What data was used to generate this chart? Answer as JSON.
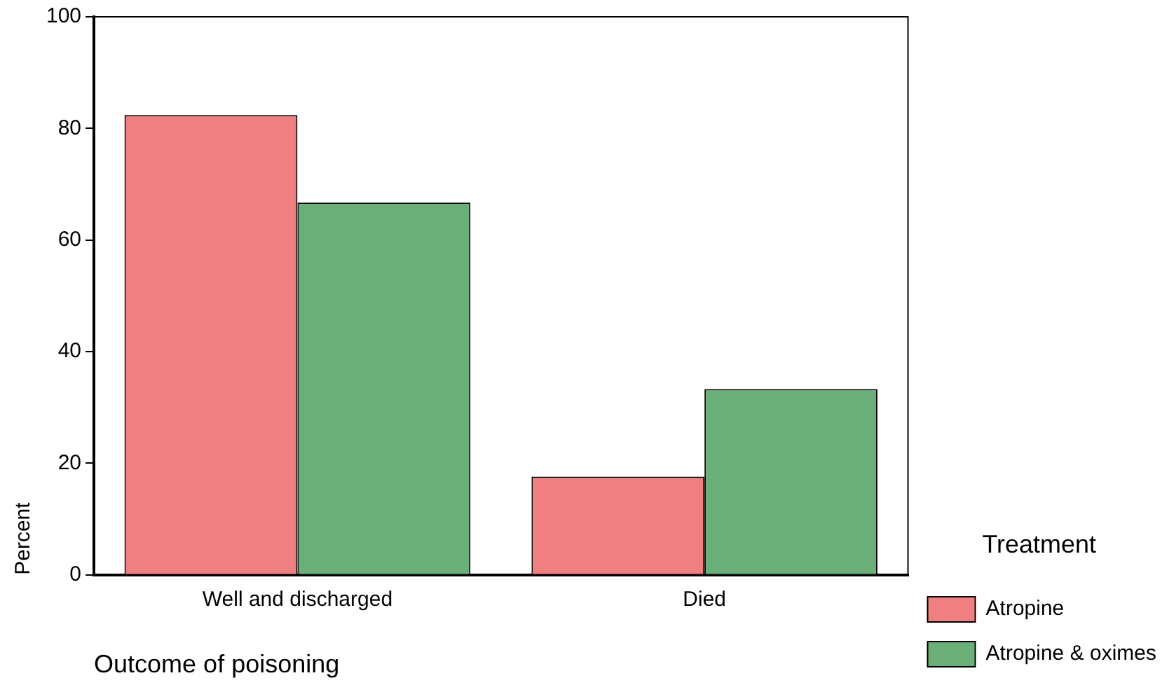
{
  "chart_data": {
    "type": "bar",
    "xlabel": "Outcome of poisoning",
    "ylabel": "Percent",
    "legend_title": "Treatment",
    "categories": [
      "Well and discharged",
      "Died"
    ],
    "series": [
      {
        "name": "Atropine",
        "color": "#ef7f80",
        "values": [
          82.4,
          17.6
        ]
      },
      {
        "name": "Atropine & oximes",
        "color": "#6aae78",
        "values": [
          66.7,
          33.3
        ]
      }
    ],
    "ylim": [
      0,
      100
    ],
    "yticks": [
      0,
      20,
      40,
      60,
      80,
      100
    ],
    "grid": false,
    "legend": "right"
  }
}
